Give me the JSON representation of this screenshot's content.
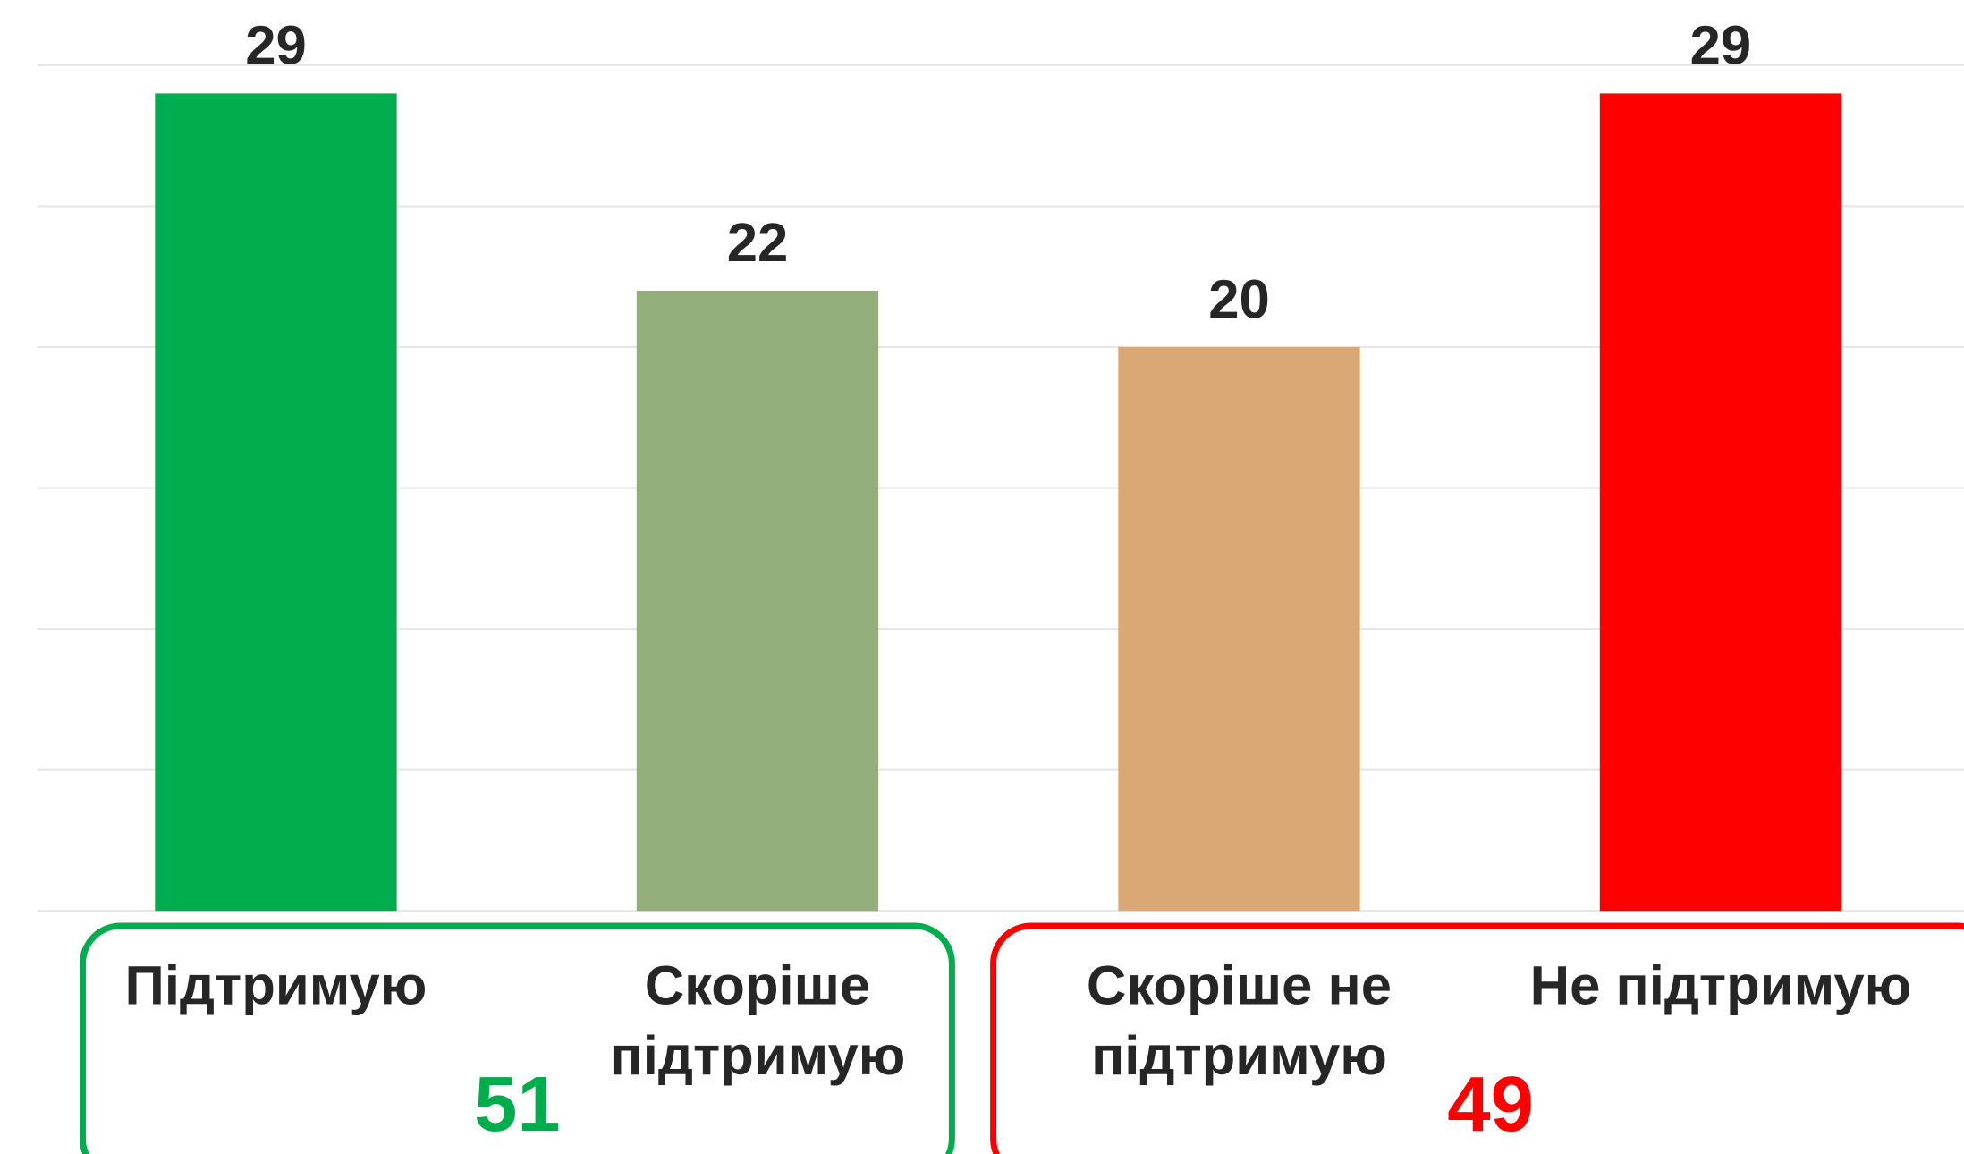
{
  "chart_data": {
    "type": "bar",
    "categories": [
      "Підтримую",
      "Скоріше\nпідтримую",
      "Скоріше не\nпідтримую",
      "Не підтримую"
    ],
    "values": [
      29,
      22,
      20,
      29
    ],
    "colors": [
      "#00ad4c",
      "#93ad7b",
      "#d9a874",
      "#ff0000"
    ],
    "ylim": [
      0,
      30
    ],
    "yticks": [
      0,
      5,
      10,
      15,
      20,
      25,
      30
    ],
    "grid": true,
    "annotations": [
      {
        "text": "51",
        "color": "#00ad4c"
      },
      {
        "text": "49",
        "color": "#ff0000"
      }
    ]
  }
}
